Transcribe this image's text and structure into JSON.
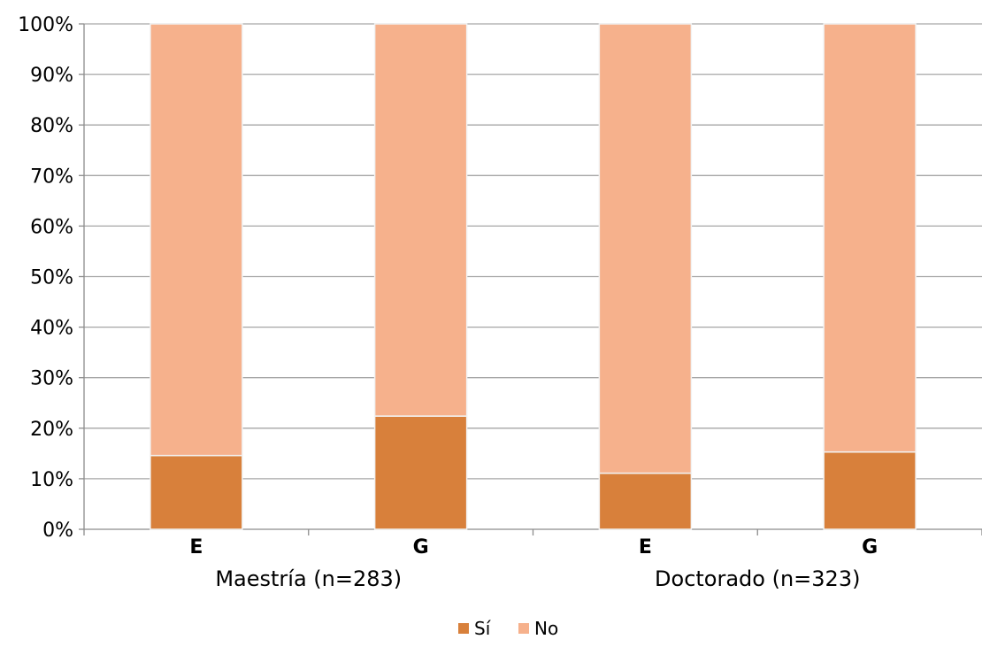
{
  "chart_data": {
    "type": "bar",
    "stacked": true,
    "title": "",
    "xlabel": "",
    "ylabel": "",
    "ylim": [
      0,
      100
    ],
    "y_ticks": [
      "0%",
      "10%",
      "20%",
      "30%",
      "40%",
      "50%",
      "60%",
      "70%",
      "80%",
      "90%",
      "100%"
    ],
    "categories": [
      "E",
      "G",
      "E",
      "G"
    ],
    "groups": [
      {
        "label": "Maestría (n=283)",
        "categories": [
          "E",
          "G"
        ]
      },
      {
        "label": "Doctorado (n=323)",
        "categories": [
          "E",
          "G"
        ]
      }
    ],
    "series": [
      {
        "name": "Sí",
        "color": "#D8803B",
        "values": [
          14.6,
          22.4,
          11.1,
          15.3
        ]
      },
      {
        "name": "No",
        "color": "#F6B18C",
        "values": [
          85.4,
          77.6,
          88.9,
          84.7
        ]
      }
    ],
    "grid": true,
    "legend_position": "bottom-center",
    "colors": {
      "grid": "#A6A6A6",
      "axis": "#8C8C8C",
      "text": "#000000",
      "bar_edge": "#F2F2F2"
    }
  }
}
